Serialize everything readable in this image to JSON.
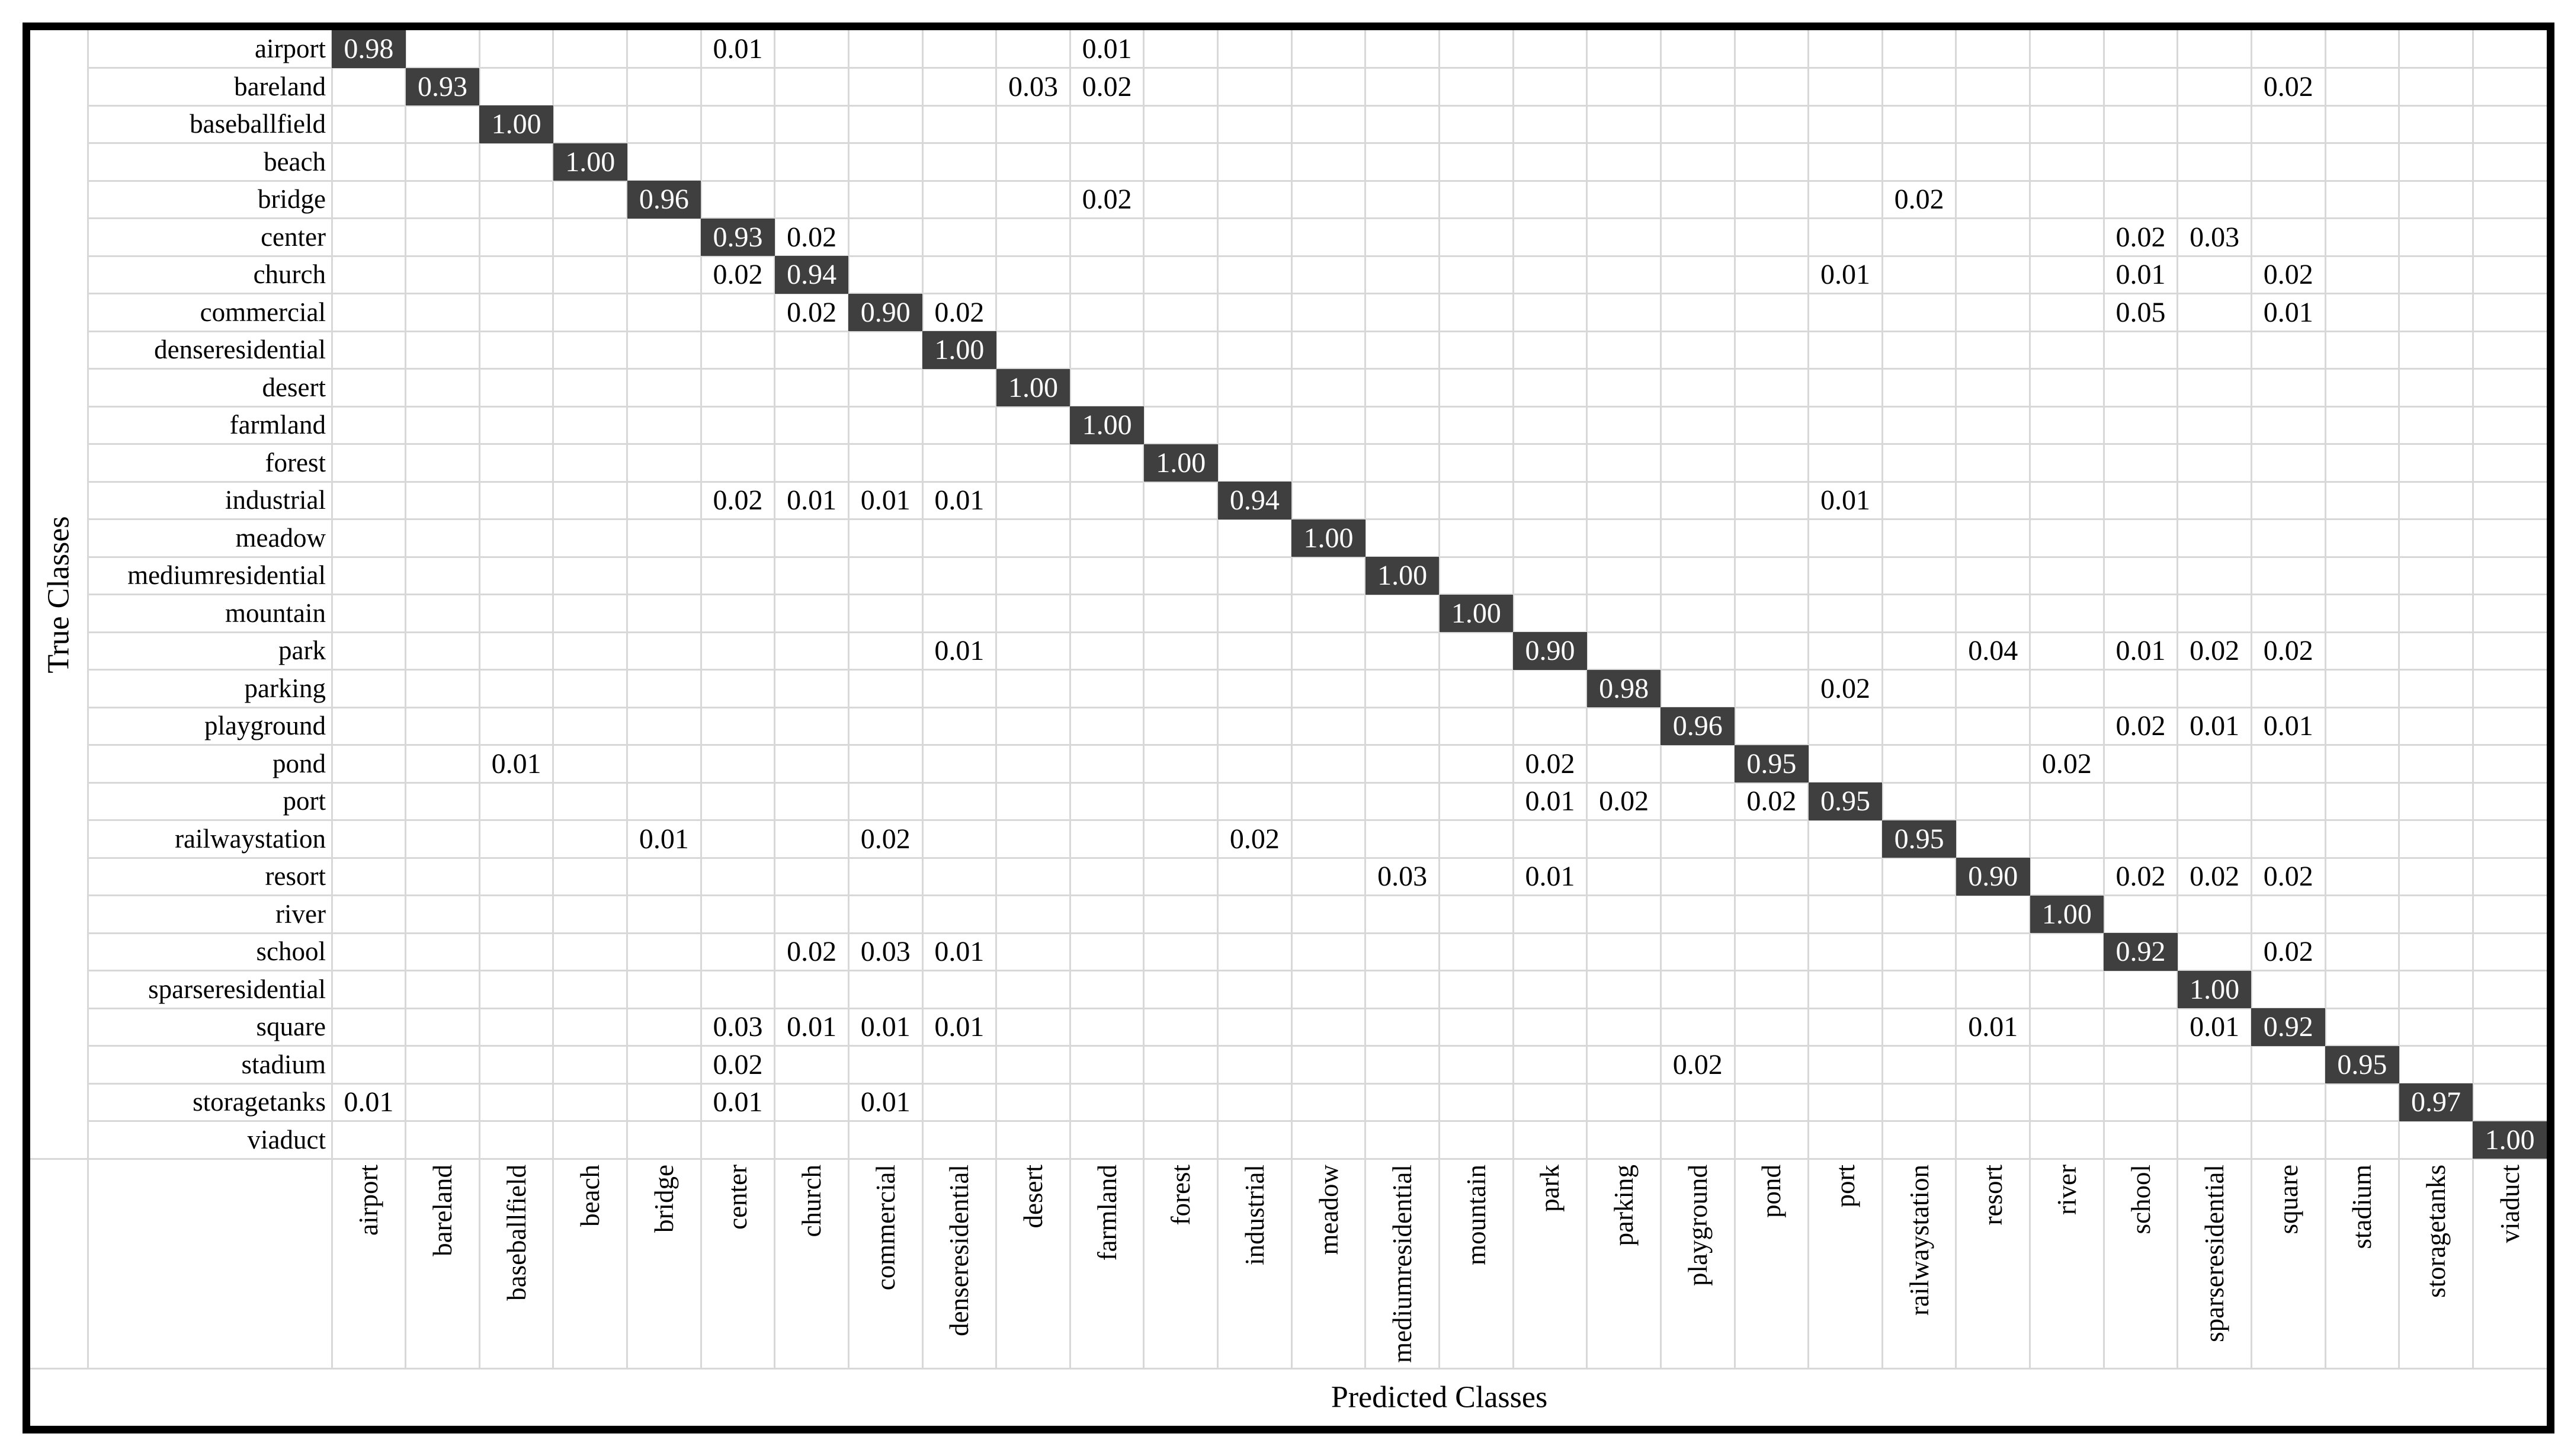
{
  "figure": {
    "y_axis_title": "True Classes",
    "x_axis_title": "Predicted Classes"
  },
  "chart_data": {
    "type": "heatmap",
    "title": "",
    "xlabel": "Predicted Classes",
    "ylabel": "True Classes",
    "legend": "none",
    "grid": "on",
    "value_range": [
      0,
      1
    ],
    "classes": [
      "airport",
      "bareland",
      "baseballfield",
      "beach",
      "bridge",
      "center",
      "church",
      "commercial",
      "denseresidential",
      "desert",
      "farmland",
      "forest",
      "industrial",
      "meadow",
      "mediumresidential",
      "mountain",
      "park",
      "parking",
      "playground",
      "pond",
      "port",
      "railwaystation",
      "resort",
      "river",
      "school",
      "sparseresidential",
      "square",
      "stadium",
      "storagetanks",
      "viaduct"
    ],
    "cells": [
      {
        "t": "airport",
        "p": "airport",
        "v": "0.98"
      },
      {
        "t": "airport",
        "p": "center",
        "v": "0.01"
      },
      {
        "t": "airport",
        "p": "farmland",
        "v": "0.01"
      },
      {
        "t": "bareland",
        "p": "bareland",
        "v": "0.93"
      },
      {
        "t": "bareland",
        "p": "desert",
        "v": "0.03"
      },
      {
        "t": "bareland",
        "p": "farmland",
        "v": "0.02"
      },
      {
        "t": "bareland",
        "p": "square",
        "v": "0.02"
      },
      {
        "t": "baseballfield",
        "p": "baseballfield",
        "v": "1.00"
      },
      {
        "t": "beach",
        "p": "beach",
        "v": "1.00"
      },
      {
        "t": "bridge",
        "p": "bridge",
        "v": "0.96"
      },
      {
        "t": "bridge",
        "p": "farmland",
        "v": "0.02"
      },
      {
        "t": "bridge",
        "p": "railwaystation",
        "v": "0.02"
      },
      {
        "t": "center",
        "p": "center",
        "v": "0.93"
      },
      {
        "t": "center",
        "p": "church",
        "v": "0.02"
      },
      {
        "t": "center",
        "p": "school",
        "v": "0.02"
      },
      {
        "t": "center",
        "p": "sparseresidential",
        "v": "0.03"
      },
      {
        "t": "church",
        "p": "center",
        "v": "0.02"
      },
      {
        "t": "church",
        "p": "church",
        "v": "0.94"
      },
      {
        "t": "church",
        "p": "port",
        "v": "0.01"
      },
      {
        "t": "church",
        "p": "school",
        "v": "0.01"
      },
      {
        "t": "church",
        "p": "square",
        "v": "0.02"
      },
      {
        "t": "commercial",
        "p": "church",
        "v": "0.02"
      },
      {
        "t": "commercial",
        "p": "commercial",
        "v": "0.90"
      },
      {
        "t": "commercial",
        "p": "denseresidential",
        "v": "0.02"
      },
      {
        "t": "commercial",
        "p": "school",
        "v": "0.05"
      },
      {
        "t": "commercial",
        "p": "square",
        "v": "0.01"
      },
      {
        "t": "denseresidential",
        "p": "denseresidential",
        "v": "1.00"
      },
      {
        "t": "desert",
        "p": "desert",
        "v": "1.00"
      },
      {
        "t": "farmland",
        "p": "farmland",
        "v": "1.00"
      },
      {
        "t": "forest",
        "p": "forest",
        "v": "1.00"
      },
      {
        "t": "industrial",
        "p": "center",
        "v": "0.02"
      },
      {
        "t": "industrial",
        "p": "church",
        "v": "0.01"
      },
      {
        "t": "industrial",
        "p": "commercial",
        "v": "0.01"
      },
      {
        "t": "industrial",
        "p": "denseresidential",
        "v": "0.01"
      },
      {
        "t": "industrial",
        "p": "industrial",
        "v": "0.94"
      },
      {
        "t": "industrial",
        "p": "port",
        "v": "0.01"
      },
      {
        "t": "meadow",
        "p": "meadow",
        "v": "1.00"
      },
      {
        "t": "mediumresidential",
        "p": "mediumresidential",
        "v": "1.00"
      },
      {
        "t": "mountain",
        "p": "mountain",
        "v": "1.00"
      },
      {
        "t": "park",
        "p": "denseresidential",
        "v": "0.01"
      },
      {
        "t": "park",
        "p": "park",
        "v": "0.90"
      },
      {
        "t": "park",
        "p": "resort",
        "v": "0.04"
      },
      {
        "t": "park",
        "p": "school",
        "v": "0.01"
      },
      {
        "t": "park",
        "p": "sparseresidential",
        "v": "0.02"
      },
      {
        "t": "park",
        "p": "square",
        "v": "0.02"
      },
      {
        "t": "parking",
        "p": "parking",
        "v": "0.98"
      },
      {
        "t": "parking",
        "p": "port",
        "v": "0.02"
      },
      {
        "t": "playground",
        "p": "playground",
        "v": "0.96"
      },
      {
        "t": "playground",
        "p": "school",
        "v": "0.02"
      },
      {
        "t": "playground",
        "p": "sparseresidential",
        "v": "0.01"
      },
      {
        "t": "playground",
        "p": "square",
        "v": "0.01"
      },
      {
        "t": "pond",
        "p": "baseballfield",
        "v": "0.01"
      },
      {
        "t": "pond",
        "p": "park",
        "v": "0.02"
      },
      {
        "t": "pond",
        "p": "pond",
        "v": "0.95"
      },
      {
        "t": "pond",
        "p": "river",
        "v": "0.02"
      },
      {
        "t": "port",
        "p": "park",
        "v": "0.01"
      },
      {
        "t": "port",
        "p": "parking",
        "v": "0.02"
      },
      {
        "t": "port",
        "p": "pond",
        "v": "0.02"
      },
      {
        "t": "port",
        "p": "port",
        "v": "0.95"
      },
      {
        "t": "railwaystation",
        "p": "bridge",
        "v": "0.01"
      },
      {
        "t": "railwaystation",
        "p": "commercial",
        "v": "0.02"
      },
      {
        "t": "railwaystation",
        "p": "industrial",
        "v": "0.02"
      },
      {
        "t": "railwaystation",
        "p": "railwaystation",
        "v": "0.95"
      },
      {
        "t": "resort",
        "p": "mediumresidential",
        "v": "0.03"
      },
      {
        "t": "resort",
        "p": "park",
        "v": "0.01"
      },
      {
        "t": "resort",
        "p": "resort",
        "v": "0.90"
      },
      {
        "t": "resort",
        "p": "school",
        "v": "0.02"
      },
      {
        "t": "resort",
        "p": "sparseresidential",
        "v": "0.02"
      },
      {
        "t": "resort",
        "p": "square",
        "v": "0.02"
      },
      {
        "t": "river",
        "p": "river",
        "v": "1.00"
      },
      {
        "t": "school",
        "p": "church",
        "v": "0.02"
      },
      {
        "t": "school",
        "p": "commercial",
        "v": "0.03"
      },
      {
        "t": "school",
        "p": "denseresidential",
        "v": "0.01"
      },
      {
        "t": "school",
        "p": "school",
        "v": "0.92"
      },
      {
        "t": "school",
        "p": "square",
        "v": "0.02"
      },
      {
        "t": "sparseresidential",
        "p": "sparseresidential",
        "v": "1.00"
      },
      {
        "t": "square",
        "p": "center",
        "v": "0.03"
      },
      {
        "t": "square",
        "p": "church",
        "v": "0.01"
      },
      {
        "t": "square",
        "p": "commercial",
        "v": "0.01"
      },
      {
        "t": "square",
        "p": "denseresidential",
        "v": "0.01"
      },
      {
        "t": "square",
        "p": "resort",
        "v": "0.01"
      },
      {
        "t": "square",
        "p": "sparseresidential",
        "v": "0.01"
      },
      {
        "t": "square",
        "p": "square",
        "v": "0.92"
      },
      {
        "t": "stadium",
        "p": "center",
        "v": "0.02"
      },
      {
        "t": "stadium",
        "p": "playground",
        "v": "0.02"
      },
      {
        "t": "stadium",
        "p": "stadium",
        "v": "0.95"
      },
      {
        "t": "storagetanks",
        "p": "airport",
        "v": "0.01"
      },
      {
        "t": "storagetanks",
        "p": "center",
        "v": "0.01"
      },
      {
        "t": "storagetanks",
        "p": "commercial",
        "v": "0.01"
      },
      {
        "t": "storagetanks",
        "p": "storagetanks",
        "v": "0.97"
      },
      {
        "t": "viaduct",
        "p": "viaduct",
        "v": "1.00"
      }
    ],
    "colors": {
      "diagonal_cell_bg": "#3f3f3f",
      "diagonal_cell_text": "#ffffff",
      "offdiagonal_text": "#000000",
      "gridline": "#d8d8d8",
      "frame_border": "#000000",
      "background": "#ffffff"
    }
  }
}
